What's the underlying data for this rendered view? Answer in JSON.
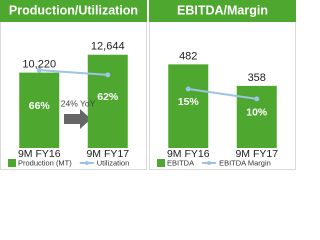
{
  "chart_data": [
    {
      "type": "bar",
      "title": "Production/Utilization",
      "categories": [
        "9M FY16",
        "9M FY17"
      ],
      "series": [
        {
          "name": "Production (MT)",
          "color": "#4ea72e",
          "values": [
            10220,
            12644
          ],
          "value_labels": [
            "10,220",
            "12,644"
          ]
        },
        {
          "name": "Utilization",
          "type": "line",
          "axis": "y2",
          "color": "#9dc3e6",
          "values": [
            66,
            62
          ],
          "value_labels": [
            "66%",
            "62%"
          ]
        }
      ],
      "ylim": [
        0,
        16000
      ],
      "y2lim": [
        0,
        100
      ],
      "annotation": "24% YoY"
    },
    {
      "type": "bar",
      "title": "EBITDA/Margin",
      "categories": [
        "9M FY16",
        "9M FY17"
      ],
      "series": [
        {
          "name": "EBITDA",
          "color": "#4ea72e",
          "values": [
            482,
            358
          ]
        },
        {
          "name": "EBITDA Margin",
          "type": "line",
          "axis": "y2",
          "color": "#9dc3e6",
          "values": [
            15,
            10
          ],
          "value_labels": [
            "15%",
            "10%"
          ]
        }
      ],
      "ylim": [
        0,
        680
      ],
      "y2lim": [
        -15,
        45
      ]
    }
  ]
}
